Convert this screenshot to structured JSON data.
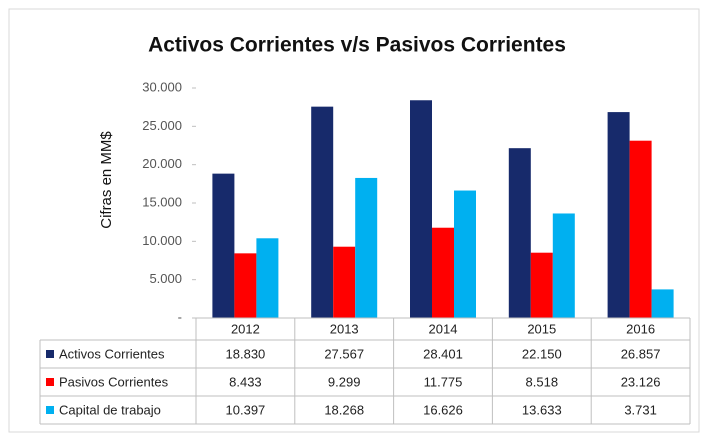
{
  "chart_data": {
    "type": "bar",
    "title": "Activos Corrientes v/s Pasivos Corrientes",
    "y_label": "Cifras en MM$",
    "categories": [
      "2012",
      "2013",
      "2014",
      "2015",
      "2016"
    ],
    "series": [
      {
        "name": "Activos Corrientes",
        "color": "#172a6b",
        "values": [
          18830,
          27567,
          28401,
          22150,
          26857
        ],
        "value_labels": [
          "18.830",
          "27.567",
          "28.401",
          "22.150",
          "26.857"
        ]
      },
      {
        "name": "Pasivos Corrientes",
        "color": "#ff0000",
        "values": [
          8433,
          9299,
          11775,
          8518,
          23126
        ],
        "value_labels": [
          "8.433",
          "9.299",
          "11.775",
          "8.518",
          "23.126"
        ]
      },
      {
        "name": "Capital de trabajo",
        "color": "#00b0f0",
        "values": [
          10397,
          18268,
          16626,
          13633,
          3731
        ],
        "value_labels": [
          "10.397",
          "18.268",
          "16.626",
          "13.633",
          "3.731"
        ]
      }
    ],
    "ylim": [
      0,
      30000
    ],
    "yticks": [
      {
        "value": 0,
        "label": "-"
      },
      {
        "value": 5000,
        "label": "5.000"
      },
      {
        "value": 10000,
        "label": "10.000"
      },
      {
        "value": 15000,
        "label": "15.000"
      },
      {
        "value": 20000,
        "label": "20.000"
      },
      {
        "value": 25000,
        "label": "25.000"
      },
      {
        "value": 30000,
        "label": "30.000"
      }
    ],
    "grid": false
  }
}
